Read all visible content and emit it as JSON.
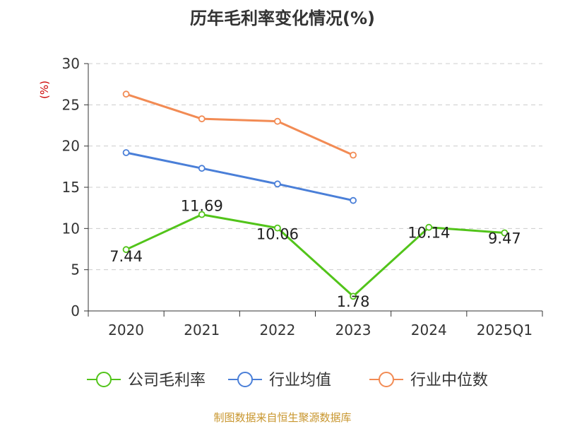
{
  "chart_data": {
    "type": "line",
    "title": "历年毛利率变化情况(%)",
    "ylabel": "(%)",
    "xlabel": "",
    "categories": [
      "2020",
      "2021",
      "2022",
      "2023",
      "2024",
      "2025Q1"
    ],
    "ylim": [
      0,
      30
    ],
    "yticks": [
      0,
      5,
      10,
      15,
      20,
      25,
      30
    ],
    "grid": true,
    "legend_position": "bottom",
    "series": [
      {
        "name": "公司毛利率",
        "color": "#52c41a",
        "values": [
          7.44,
          11.69,
          10.06,
          1.78,
          10.14,
          9.47
        ],
        "labels": [
          "7.44",
          "11.69",
          "10.06",
          "1.78",
          "10.14",
          "9.47"
        ]
      },
      {
        "name": "行业均值",
        "color": "#4a7fd8",
        "values": [
          19.2,
          17.3,
          15.4,
          13.4,
          null,
          null
        ]
      },
      {
        "name": "行业中位数",
        "color": "#f28b54",
        "values": [
          26.3,
          23.3,
          23.0,
          18.9,
          null,
          null
        ]
      }
    ]
  },
  "source": "制图数据来自恒生聚源数据库",
  "colors": {
    "source_text": "#c8962e",
    "ylabel": "#cc0000",
    "axis": "#333333",
    "grid": "#cccccc"
  }
}
